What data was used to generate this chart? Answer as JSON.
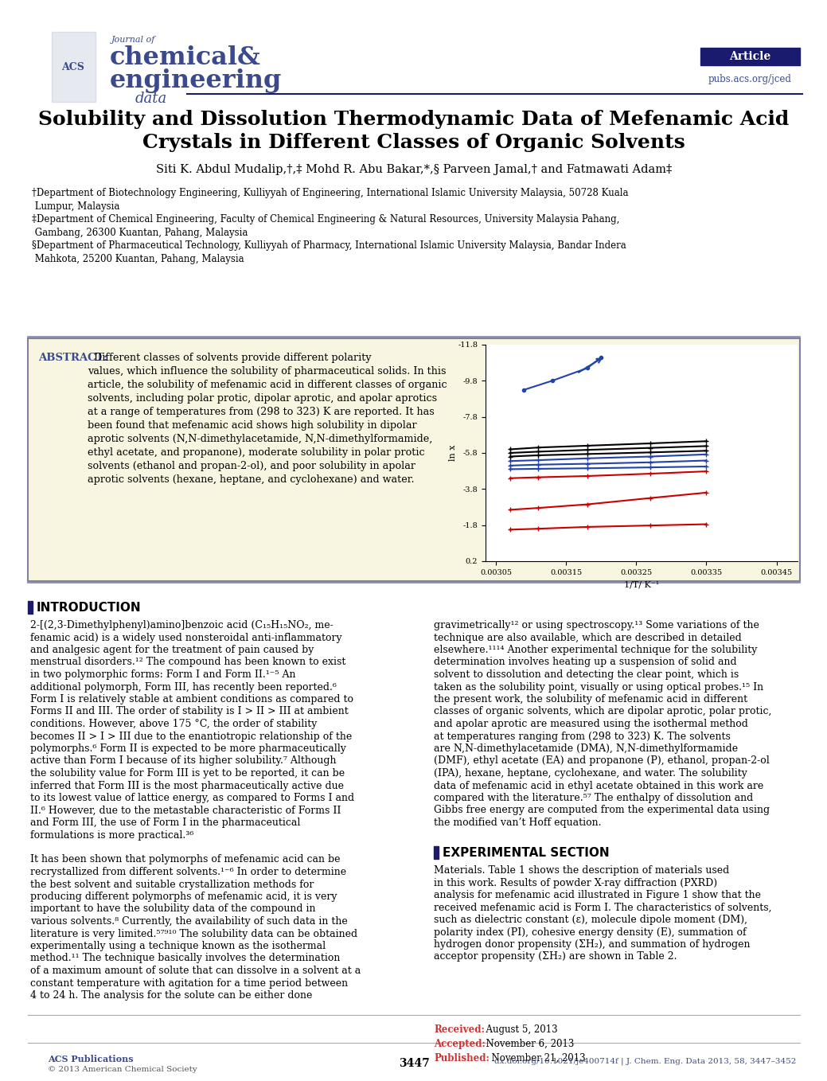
{
  "title_line1": "Solubility and Dissolution Thermodynamic Data of Mefenamic Acid",
  "title_line2": "Crystals in Different Classes of Organic Solvents",
  "authors": "Siti K. Abdul Mudalip,†,‡ Mohd R. Abu Bakar,*,§ Parveen Jamal,† and Fatmawati Adam‡",
  "affil1": "†Department of Biotechnology Engineering, Kulliyyah of Engineering, International Islamic University Malaysia, 50728 Kuala\n Lumpur, Malaysia",
  "affil2": "‡Department of Chemical Engineering, Faculty of Chemical Engineering & Natural Resources, University Malaysia Pahang,\n Gambang, 26300 Kuantan, Pahang, Malaysia",
  "affil3": "§Department of Pharmaceutical Technology, Kulliyyah of Pharmacy, International Islamic University Malaysia, Bandar Indera\n Mahkota, 25200 Kuantan, Pahang, Malaysia",
  "abstract_label": "ABSTRACT:",
  "abstract_lines": [
    "  Different classes of solvents provide different polarity",
    "values, which influence the solubility of pharmaceutical solids. In this",
    "article, the solubility of mefenamic acid in different classes of organic",
    "solvents, including polar protic, dipolar aprotic, and apolar aprotics",
    "at a range of temperatures from (298 to 323) K are reported. It has",
    "been found that mefenamic acid shows high solubility in dipolar",
    "aprotic solvents (N,N-dimethylacetamide, N,N-dimethylformamide,",
    "ethyl acetate, and propanone), moderate solubility in polar protic",
    "solvents (ethanol and propan-2-ol), and poor solubility in apolar",
    "aprotic solvents (hexane, heptane, and cyclohexane) and water."
  ],
  "article_badge": "Article",
  "journal_url": "pubs.acs.org/jced",
  "intro_title": "INTRODUCTION",
  "intro_left_lines": [
    "2-[(2,3-Dimethylphenyl)amino]benzoic acid (C₁₅H₁₅NO₂, me-",
    "fenamic acid) is a widely used nonsteroidal anti-inflammatory",
    "and analgesic agent for the treatment of pain caused by",
    "menstrual disorders.¹² The compound has been known to exist",
    "in two polymorphic forms: Form I and Form II.¹⁻⁵ An",
    "additional polymorph, Form III, has recently been reported.⁶",
    "Form I is relatively stable at ambient conditions as compared to",
    "Forms II and III. The order of stability is I > II > III at ambient",
    "conditions. However, above 175 °C, the order of stability",
    "becomes II > I > III due to the enantiotropic relationship of the",
    "polymorphs.⁶ Form II is expected to be more pharmaceutically",
    "active than Form I because of its higher solubility.⁷ Although",
    "the solubility value for Form III is yet to be reported, it can be",
    "inferred that Form III is the most pharmaceutically active due",
    "to its lowest value of lattice energy, as compared to Forms I and",
    "II.⁶ However, due to the metastable characteristic of Forms II",
    "and Form III, the use of Form I in the pharmaceutical",
    "formulations is more practical.³⁶",
    "",
    "It has been shown that polymorphs of mefenamic acid can be",
    "recrystallized from different solvents.¹⁻⁶ In order to determine",
    "the best solvent and suitable crystallization methods for",
    "producing different polymorphs of mefenamic acid, it is very",
    "important to have the solubility data of the compound in",
    "various solvents.⁸ Currently, the availability of such data in the",
    "literature is very limited.⁵⁷⁹¹⁰ The solubility data can be obtained",
    "experimentally using a technique known as the isothermal",
    "method.¹¹ The technique basically involves the determination",
    "of a maximum amount of solute that can dissolve in a solvent at a",
    "constant temperature with agitation for a time period between",
    "4 to 24 h. The analysis for the solute can be either done"
  ],
  "intro_right_lines": [
    "gravimetrically¹² or using spectroscopy.¹³ Some variations of the",
    "technique are also available, which are described in detailed",
    "elsewhere.¹¹¹⁴ Another experimental technique for the solubility",
    "determination involves heating up a suspension of solid and",
    "solvent to dissolution and detecting the clear point, which is",
    "taken as the solubility point, visually or using optical probes.¹⁵ In",
    "the present work, the solubility of mefenamic acid in different",
    "classes of organic solvents, which are dipolar aprotic, polar protic,",
    "and apolar aprotic are measured using the isothermal method",
    "at temperatures ranging from (298 to 323) K. The solvents",
    "are N,N-dimethylacetamide (DMA), N,N-dimethylformamide",
    "(DMF), ethyl acetate (EA) and propanone (P), ethanol, propan-2-ol",
    "(IPA), hexane, heptane, cyclohexane, and water. The solubility",
    "data of mefenamic acid in ethyl acetate obtained in this work are",
    "compared with the literature.⁵⁷ The enthalpy of dissolution and",
    "Gibbs free energy are computed from the experimental data using",
    "the modified van’t Hoff equation.",
    ""
  ],
  "exp_section_title": "EXPERIMENTAL SECTION",
  "exp_body_lines": [
    "Materials. Table 1 shows the description of materials used",
    "in this work. Results of powder X-ray diffraction (PXRD)",
    "analysis for mefenamic acid illustrated in Figure 1 show that the",
    "received mefenamic acid is Form I. The characteristics of solvents,",
    "such as dielectric constant (ε), molecule dipole moment (DM),",
    "polarity index (PI), cohesive energy density (E), summation of",
    "hydrogen donor propensity (ΣH₂), and summation of hydrogen",
    "acceptor propensity (ΣH₂) are shown in Table 2."
  ],
  "received_label": "Received:",
  "received_date": "  August 5, 2013",
  "accepted_label": "Accepted:",
  "accepted_date": "  November 6, 2013",
  "published_label": "Published:",
  "published_date": "  November 21, 2013",
  "page_number": "3447",
  "doi_text": "dx.doi.org/10.1021/je400714f | J. Chem. Eng. Data 2013, 58, 3447–3452",
  "copyright": "© 2013 American Chemical Society",
  "graph": {
    "ylim": [
      -11.8,
      0.2
    ],
    "xlim": [
      0.003035,
      0.00348
    ],
    "yticks": [
      0.2,
      -1.8,
      -3.8,
      -5.8,
      -7.8,
      -9.8,
      -11.8
    ],
    "xticks": [
      0.00305,
      0.00315,
      0.00325,
      0.00335,
      0.00345
    ],
    "xtick_labels": [
      "0.00305",
      "0.00315",
      "0.00325",
      "0.00335",
      "0.00345"
    ],
    "xlabel": "1/T/ K⁻¹",
    "ylabel": "ln x"
  },
  "bg_color": "#ffffff",
  "abstract_bg": "#f8f5e0",
  "border_color": "#8080a0",
  "text_color": "#000000",
  "header_blue": "#3a4a8c",
  "red_color": "#cc0000",
  "blue_color": "#2244aa",
  "section_bar_color": "#1a1a6e"
}
